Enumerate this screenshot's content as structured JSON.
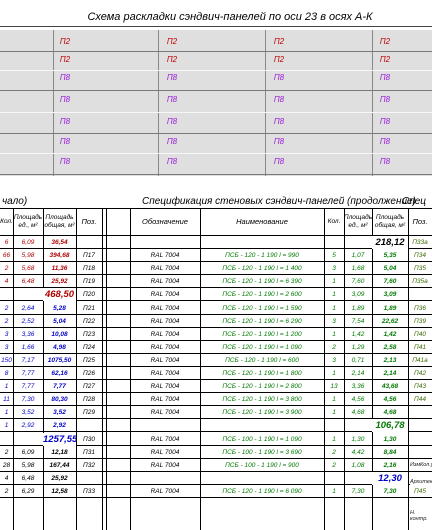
{
  "scheme": {
    "title": "Схема раскладки сэндвич-панелей по оси 23 в осях А-К",
    "rows": [
      {
        "label": "П2",
        "color": "#c00000"
      },
      {
        "label": "П2",
        "color": "#c00000"
      },
      {
        "label": "П8",
        "color": "#9a20d8"
      },
      {
        "label": "П8",
        "color": "#9a20d8"
      },
      {
        "label": "П8",
        "color": "#9a20d8"
      },
      {
        "label": "П8",
        "color": "#9a20d8"
      },
      {
        "label": "П8",
        "color": "#9a20d8"
      }
    ]
  },
  "spec": {
    "left_title": "чало)",
    "main_title": "Спецификация стеновых сэндвич-панелей (продолжение)",
    "right_title": "Спец",
    "headers": {
      "kol": "Кол.",
      "area_unit": "Площадь ед., м²",
      "area_total": "Площадь общая, м²",
      "pos": "Поз.",
      "designation": "Обозначение",
      "name": "Наименование"
    },
    "rows": [
      {
        "l_kol": "6",
        "l_unit": "6,09",
        "l_total": "36,54",
        "pos": "",
        "des": "",
        "name": "",
        "kol": "",
        "unit": "",
        "total": "",
        "r_pos": "П33а",
        "sum_r": "218,12",
        "color": "dred"
      },
      {
        "l_kol": "66",
        "l_unit": "5,98",
        "l_total": "394,68",
        "pos": "П17",
        "des": "RAL 7004",
        "name": "ПСБ - 120 - 1 190  l = 990",
        "kol": "5",
        "unit": "1,07",
        "total": "5,35",
        "r_pos": "П34",
        "color": "dred"
      },
      {
        "l_kol": "2",
        "l_unit": "5,68",
        "l_total": "11,36",
        "pos": "П18",
        "des": "RAL 7004",
        "name": "ПСБ - 120 - 1 190  l = 1 400",
        "kol": "3",
        "unit": "1,68",
        "total": "5,04",
        "r_pos": "П35",
        "color": "dred"
      },
      {
        "l_kol": "4",
        "l_unit": "6,48",
        "l_total": "25,92",
        "pos": "П19",
        "des": "RAL 7004",
        "name": "ПСБ - 120 - 1 190  l = 6 390",
        "kol": "1",
        "unit": "7,60",
        "total": "7,60",
        "r_pos": "П35а",
        "color": "dred"
      },
      {
        "l_kol": "",
        "l_unit": "",
        "l_total": "",
        "pos": "П20",
        "des": "RAL 7004",
        "name": "ПСБ - 120 - 1 190  l = 2 600",
        "kol": "1",
        "unit": "3,09",
        "total": "3,09",
        "r_pos": "",
        "sum_l": "468,50",
        "color": "dred"
      },
      {
        "l_kol": "2",
        "l_unit": "2,64",
        "l_total": "5,28",
        "pos": "П21",
        "des": "RAL 7004",
        "name": "ПСБ - 120 - 1 190  l = 1 590",
        "kol": "1",
        "unit": "1,89",
        "total": "1,89",
        "r_pos": "П36",
        "color": "blue"
      },
      {
        "l_kol": "2",
        "l_unit": "2,52",
        "l_total": "5,04",
        "pos": "П22",
        "des": "RAL 7004",
        "name": "ПСБ - 120 - 1 190  l = 6 290",
        "kol": "3",
        "unit": "7,54",
        "total": "22,62",
        "r_pos": "П39",
        "color": "blue"
      },
      {
        "l_kol": "3",
        "l_unit": "3,36",
        "l_total": "10,08",
        "pos": "П23",
        "des": "RAL 7004",
        "name": "ПСБ - 120 - 1 190  l = 1 200",
        "kol": "1",
        "unit": "1,42",
        "total": "1,42",
        "r_pos": "П40",
        "color": "blue"
      },
      {
        "l_kol": "3",
        "l_unit": "1,66",
        "l_total": "4,98",
        "pos": "П24",
        "des": "RAL 7004",
        "name": "ПСБ - 120 - 1 190  l = 1 090",
        "kol": "2",
        "unit": "1,29",
        "total": "2,58",
        "r_pos": "П41",
        "color": "blue"
      },
      {
        "l_kol": "150",
        "l_unit": "7,17",
        "l_total": "1075,50",
        "pos": "П25",
        "des": "RAL 7004",
        "name": "ПСБ - 120 - 1 190  l = 600",
        "kol": "3",
        "unit": "0,71",
        "total": "2,13",
        "r_pos": "П41а",
        "color": "blue"
      },
      {
        "l_kol": "8",
        "l_unit": "7,77",
        "l_total": "62,16",
        "pos": "П26",
        "des": "RAL 7004",
        "name": "ПСБ - 120 - 1 190  l = 1 800",
        "kol": "1",
        "unit": "2,14",
        "total": "2,14",
        "r_pos": "П42",
        "color": "blue"
      },
      {
        "l_kol": "1",
        "l_unit": "7,77",
        "l_total": "7,77",
        "pos": "П27",
        "des": "RAL 7004",
        "name": "ПСБ - 120 - 1 190  l = 2 800",
        "kol": "13",
        "unit": "3,36",
        "total": "43,68",
        "r_pos": "П43",
        "color": "blue"
      },
      {
        "l_kol": "11",
        "l_unit": "7,30",
        "l_total": "80,30",
        "pos": "П28",
        "des": "RAL 7004",
        "name": "ПСБ - 120 - 1 190  l = 3 800",
        "kol": "1",
        "unit": "4,56",
        "total": "4,56",
        "r_pos": "П44",
        "color": "blue"
      },
      {
        "l_kol": "1",
        "l_unit": "3,52",
        "l_total": "3,52",
        "pos": "П29",
        "des": "RAL 7004",
        "name": "ПСБ - 120 - 1 190  l = 3 900",
        "kol": "1",
        "unit": "4,68",
        "total": "4,68",
        "r_pos": "",
        "color": "blue"
      },
      {
        "l_kol": "1",
        "l_unit": "2,92",
        "l_total": "2,92",
        "pos": "",
        "des": "",
        "name": "",
        "kol": "",
        "unit": "",
        "total": "",
        "r_pos": "",
        "sum_r": "106,78",
        "color": "blue"
      },
      {
        "l_kol": "",
        "l_unit": "",
        "l_total": "",
        "pos": "П30",
        "des": "RAL 7004",
        "name": "ПСБ - 100 - 1 190  l = 1 090",
        "kol": "1",
        "unit": "1,30",
        "total": "1,30",
        "r_pos": "",
        "sum_l": "1257,55",
        "color": "gray"
      },
      {
        "l_kol": "2",
        "l_unit": "6,09",
        "l_total": "12,18",
        "pos": "П31",
        "des": "RAL 7004",
        "name": "ПСБ - 100 - 1 190  l = 3 690",
        "kol": "2",
        "unit": "4,42",
        "total": "8,84",
        "r_pos": "",
        "color": "gray"
      },
      {
        "l_kol": "28",
        "l_unit": "5,98",
        "l_total": "167,44",
        "pos": "П32",
        "des": "RAL 7004",
        "name": "ПСБ - 100 - 1 190  l = 900",
        "kol": "2",
        "unit": "1,08",
        "total": "2,16",
        "r_pos": "",
        "color": "gray"
      },
      {
        "l_kol": "4",
        "l_unit": "6,48",
        "l_total": "25,92",
        "pos": "",
        "des": "",
        "name": "",
        "kol": "",
        "unit": "",
        "total": "",
        "r_pos": "",
        "sum_r": "12,30",
        "color": "gray"
      },
      {
        "l_kol": "2",
        "l_unit": "6,29",
        "l_total": "12,58",
        "pos": "П33",
        "des": "RAL 7004",
        "name": "ПСБ - 120 - 1 190  l = 6 090",
        "kol": "1",
        "unit": "7,30",
        "total": "7,30",
        "r_pos": "П45",
        "color": "gray"
      }
    ],
    "stamp": {
      "izm": "Изм.",
      "kol": "Кол.у",
      "arch": "Архитект",
      "nkontr": "Н. контр."
    }
  }
}
